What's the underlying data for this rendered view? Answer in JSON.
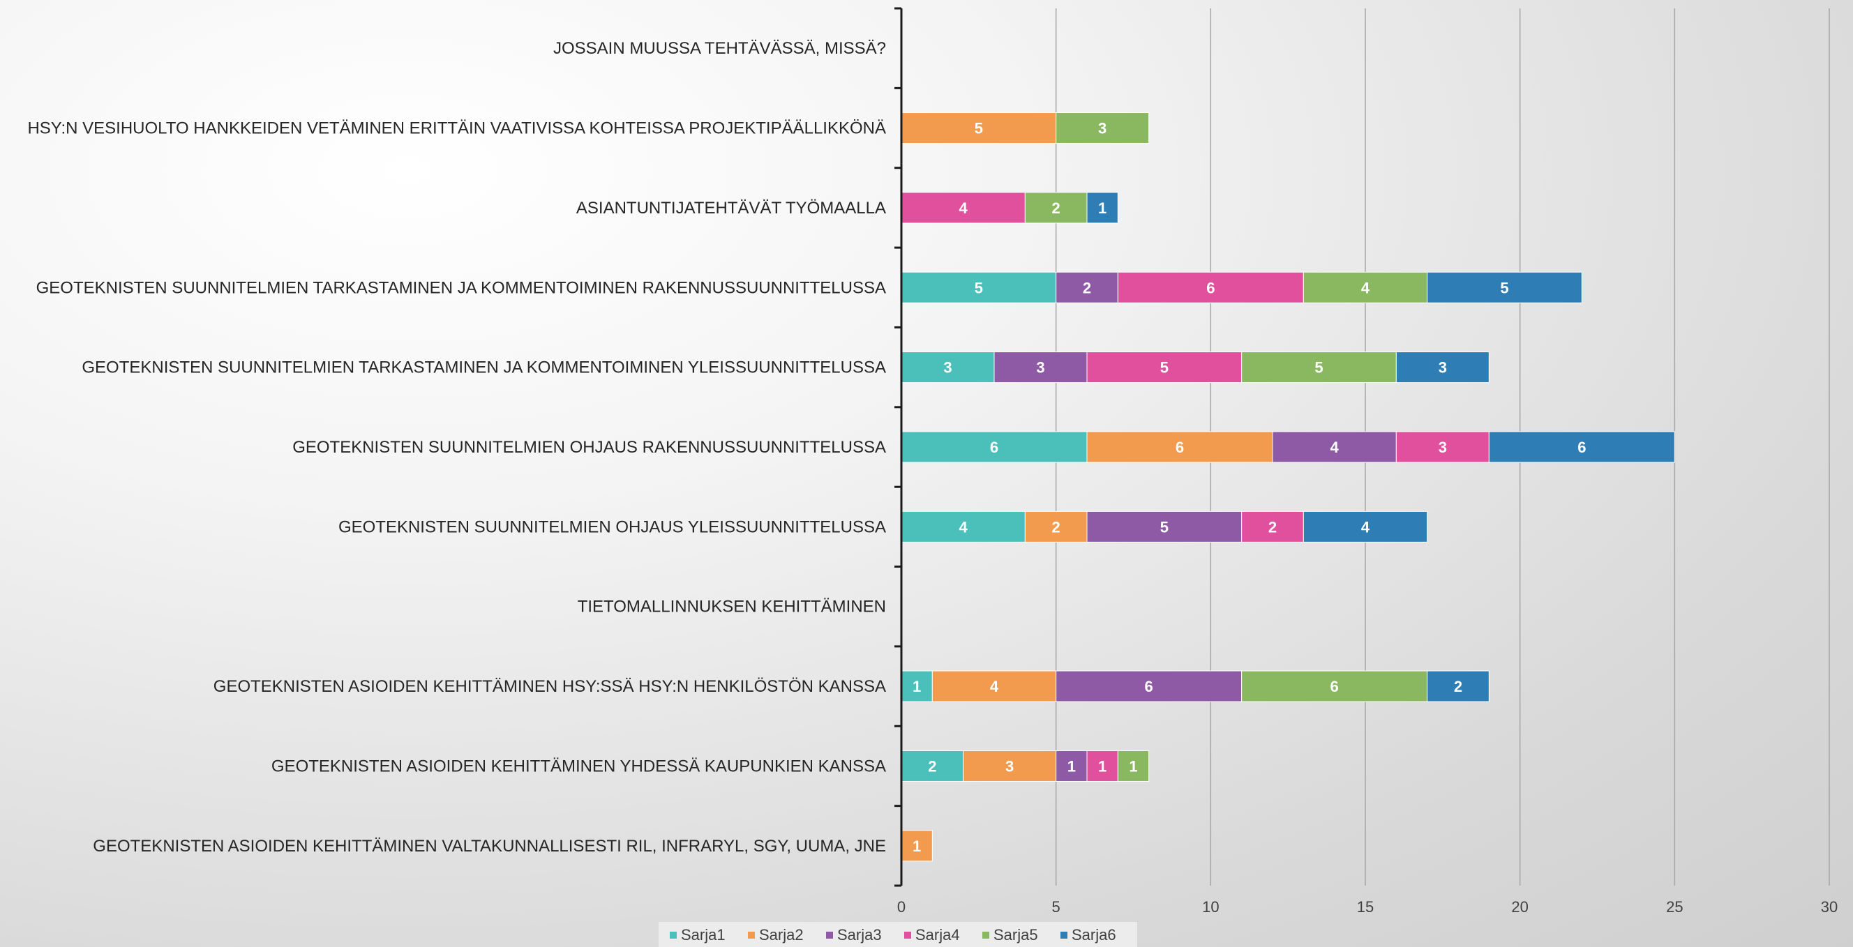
{
  "chart_data": {
    "type": "bar",
    "orientation": "horizontal",
    "stacked": true,
    "title": "",
    "xlabel": "",
    "ylabel": "",
    "xlim": [
      0,
      30
    ],
    "xticks": [
      0,
      5,
      10,
      15,
      20,
      25,
      30
    ],
    "grid": "vertical",
    "legend": "bottom",
    "categories": [
      "JOSSAIN MUUSSA TEHTÄVÄSSÄ, MISSÄ?",
      "HSY:N VESIHUOLTO HANKKEIDEN VETÄMINEN ERITTÄIN VAATIVISSA KOHTEISSA PROJEKTIPÄÄLLIKKÖNÄ",
      "ASIANTUNTIJATEHTÄVÄT TYÖMAALLA",
      "GEOTEKNISTEN SUUNNITELMIEN TARKASTAMINEN JA KOMMENTOIMINEN RAKENNUSSUUNNITTELUSSA",
      "GEOTEKNISTEN SUUNNITELMIEN TARKASTAMINEN JA KOMMENTOIMINEN YLEISSUUNNITTELUSSA",
      "GEOTEKNISTEN SUUNNITELMIEN OHJAUS RAKENNUSSUUNNITTELUSSA",
      "GEOTEKNISTEN SUUNNITELMIEN OHJAUS YLEISSUUNNITTELUSSA",
      "TIETOMALLINNUKSEN KEHITTÄMINEN",
      "GEOTEKNISTEN ASIOIDEN KEHITTÄMINEN HSY:SSÄ HSY:N HENKILÖSTÖN KANSSA",
      "GEOTEKNISTEN ASIOIDEN KEHITTÄMINEN YHDESSÄ KAUPUNKIEN KANSSA",
      "GEOTEKNISTEN ASIOIDEN KEHITTÄMINEN VALTAKUNNALLISESTI RIL, INFRARYL, SGY, UUMA, JNE"
    ],
    "series": [
      {
        "name": "Sarja1",
        "color": "#4bbfb9",
        "values": [
          0,
          0,
          0,
          5,
          3,
          6,
          4,
          0,
          1,
          2,
          0
        ]
      },
      {
        "name": "Sarja2",
        "color": "#f29a4e",
        "values": [
          0,
          5,
          0,
          0,
          0,
          6,
          2,
          0,
          4,
          3,
          1
        ]
      },
      {
        "name": "Sarja3",
        "color": "#8e5aa6",
        "values": [
          0,
          0,
          0,
          2,
          3,
          4,
          5,
          0,
          6,
          1,
          0
        ]
      },
      {
        "name": "Sarja4",
        "color": "#e0509d",
        "values": [
          0,
          0,
          4,
          6,
          5,
          3,
          2,
          0,
          0,
          1,
          0
        ]
      },
      {
        "name": "Sarja5",
        "color": "#8ab860",
        "values": [
          0,
          3,
          2,
          4,
          5,
          0,
          0,
          0,
          6,
          1,
          0
        ]
      },
      {
        "name": "Sarja6",
        "color": "#2e7db4",
        "values": [
          0,
          0,
          1,
          5,
          3,
          6,
          4,
          0,
          2,
          0,
          0
        ]
      }
    ]
  }
}
